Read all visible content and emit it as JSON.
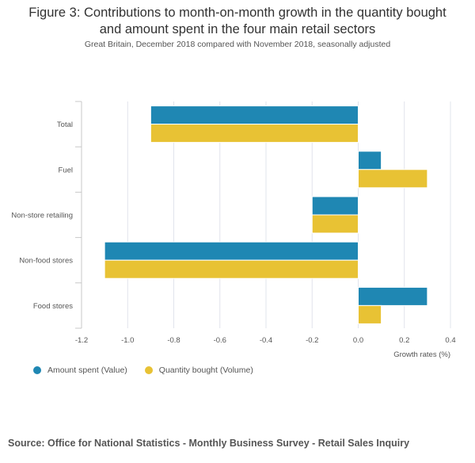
{
  "chart_data": {
    "type": "bar",
    "orientation": "horizontal",
    "title_line1": "Figure 3: Contributions to month-on-month growth in the quantity bought",
    "title_line2": "and amount spent in the four main retail sectors",
    "subtitle": "Great Britain, December 2018 compared with November 2018, seasonally adjusted",
    "xlabel": "Growth rates (%)",
    "ylabel": "",
    "xlim": [
      -1.2,
      0.4
    ],
    "xticks": [
      -1.2,
      -1.0,
      -0.8,
      -0.6,
      -0.4,
      -0.2,
      0.0,
      0.2,
      0.4
    ],
    "xtick_labels": [
      "-1.2",
      "-1.0",
      "-0.8",
      "-0.6",
      "-0.4",
      "-0.2",
      "0.0",
      "0.2",
      "0.4"
    ],
    "grid": true,
    "categories": [
      "Total",
      "Fuel",
      "Non-store retailing",
      "Non-food stores",
      "Food stores"
    ],
    "series": [
      {
        "name": "Amount spent (Value)",
        "color": "#1f87b3",
        "values": [
          -0.9,
          0.1,
          -0.2,
          -1.1,
          0.3
        ]
      },
      {
        "name": "Quantity bought (Volume)",
        "color": "#e8c234",
        "values": [
          -0.9,
          0.3,
          -0.2,
          -1.1,
          0.1
        ]
      }
    ],
    "legend_position": "bottom-left",
    "source": "Source: Office for National Statistics - Monthly Business Survey - Retail Sales Inquiry"
  }
}
